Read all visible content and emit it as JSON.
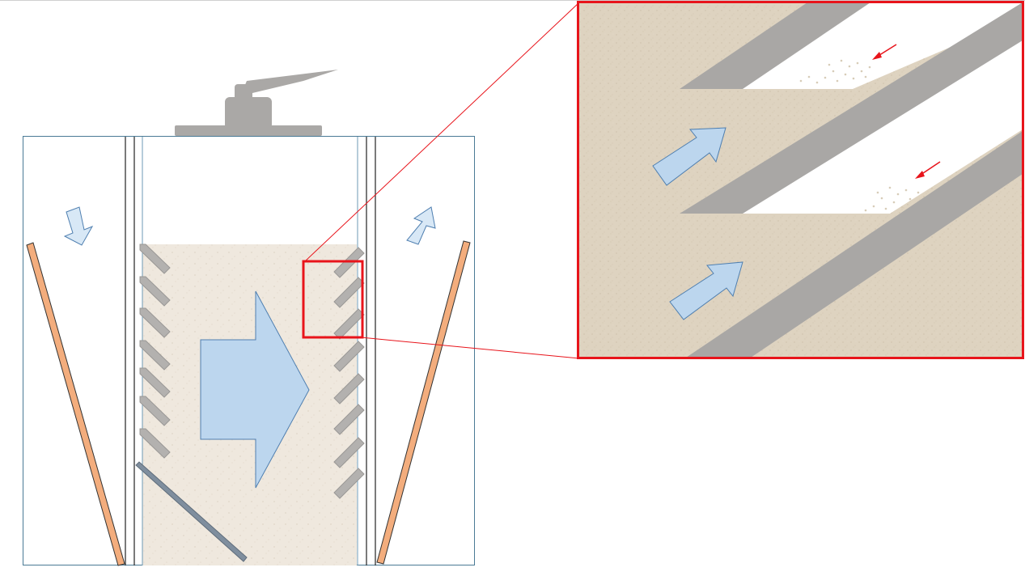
{
  "diagram": {
    "labels": [],
    "colors": {
      "frame": "#4a7a95",
      "sand": "#efe8de",
      "sand_zoom": "#ded3c0",
      "baffle": "#a9a7a5",
      "diagonal_plate": "#7f8e9e",
      "arrow_fill": "#bcd6ee",
      "arrow_stroke": "#4f7fb0",
      "orange_plate": "#f3ad7d",
      "highlight": "#e8141b",
      "cap": "#aaa8a6",
      "wall": "#222222"
    }
  }
}
